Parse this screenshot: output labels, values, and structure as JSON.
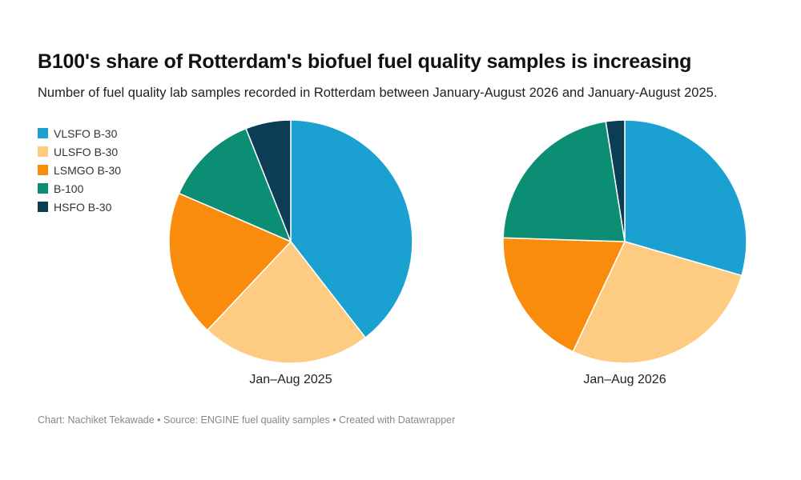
{
  "title": "B100's share of Rotterdam's biofuel fuel quality samples is increasing",
  "subtitle": "Number of fuel quality lab samples recorded in Rotterdam between January-August 2026 and January-August 2025.",
  "footer": "Chart: Nachiket Tekawade • Source: ENGINE fuel quality samples • Created with Datawrapper",
  "legend": {
    "placement": "top-left",
    "items": [
      {
        "label": "VLSFO B-30",
        "color": "#1aa1d1"
      },
      {
        "label": "ULSFO B-30",
        "color": "#fdcc82"
      },
      {
        "label": "LSMGO B-30",
        "color": "#f98c0c"
      },
      {
        "label": "B-100",
        "color": "#0c8e74"
      },
      {
        "label": "HSFO B-30",
        "color": "#0b3d55"
      }
    ]
  },
  "chart_data": [
    {
      "type": "pie",
      "label": "Jan–Aug 2025",
      "categories": [
        "VLSFO B-30",
        "ULSFO B-30",
        "LSMGO B-30",
        "B-100",
        "HSFO B-30"
      ],
      "values": [
        39.5,
        22.5,
        19.5,
        12.5,
        6
      ],
      "colors": [
        "#1aa1d1",
        "#fdcc82",
        "#f98c0c",
        "#0c8e74",
        "#0b3d55"
      ]
    },
    {
      "type": "pie",
      "label": "Jan–Aug 2026",
      "categories": [
        "VLSFO B-30",
        "ULSFO B-30",
        "LSMGO B-30",
        "B-100",
        "HSFO B-30"
      ],
      "values": [
        29.5,
        27.5,
        18.5,
        22,
        2.5
      ],
      "colors": [
        "#1aa1d1",
        "#fdcc82",
        "#f98c0c",
        "#0c8e74",
        "#0b3d55"
      ]
    }
  ]
}
